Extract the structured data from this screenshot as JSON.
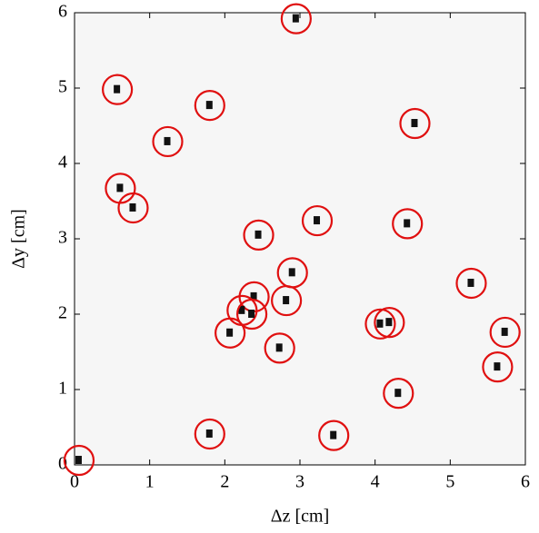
{
  "chart_data": {
    "type": "scatter",
    "xlabel": "Δz [cm]",
    "ylabel": "Δy [cm]",
    "x": [
      2.95,
      0.57,
      1.8,
      4.53,
      1.24,
      0.61,
      0.78,
      3.23,
      4.43,
      2.45,
      2.9,
      5.28,
      2.39,
      2.82,
      2.23,
      2.36,
      4.19,
      4.07,
      2.07,
      5.73,
      2.73,
      5.63,
      4.31,
      1.8,
      3.45,
      0.06
    ],
    "y": [
      5.92,
      4.98,
      4.77,
      4.53,
      4.29,
      3.67,
      3.41,
      3.24,
      3.2,
      3.05,
      2.55,
      2.41,
      2.23,
      2.18,
      2.05,
      2.0,
      1.89,
      1.87,
      1.75,
      1.76,
      1.55,
      1.3,
      0.95,
      0.41,
      0.39,
      0.06
    ],
    "color": "#e01010",
    "xlim": [
      0,
      6
    ],
    "ylim": [
      0,
      6
    ],
    "xticks": [
      0,
      1,
      2,
      3,
      4,
      5,
      6
    ],
    "yticks": [
      0,
      1,
      2,
      3,
      4,
      5,
      6
    ]
  }
}
